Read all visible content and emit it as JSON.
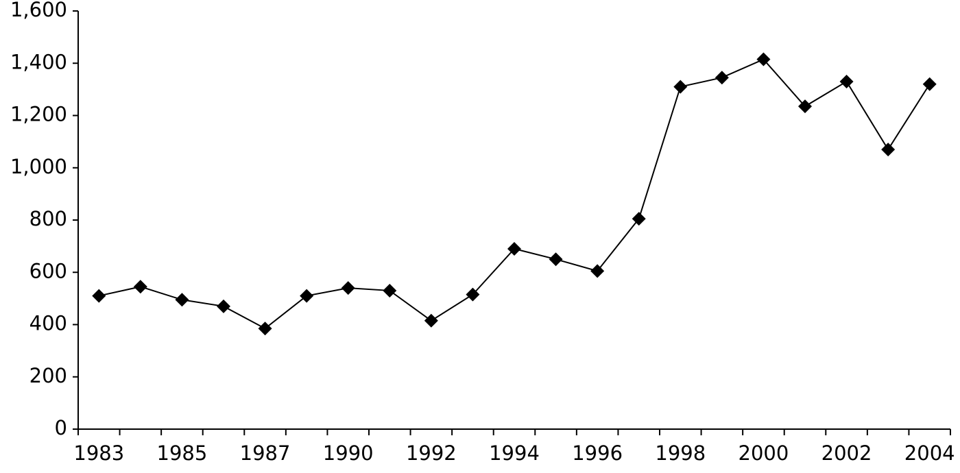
{
  "chart_data": {
    "type": "line",
    "categories": [
      "1983",
      null,
      "1985",
      null,
      "1987",
      null,
      "1990",
      null,
      "1992",
      null,
      "1994",
      null,
      "1996",
      null,
      "1998",
      null,
      "2000",
      null,
      "2002",
      null,
      "2004"
    ],
    "values": [
      510,
      545,
      495,
      470,
      385,
      510,
      540,
      530,
      415,
      515,
      690,
      650,
      605,
      805,
      1310,
      1345,
      1415,
      1235,
      1330,
      1070,
      1320
    ],
    "color": "#000000",
    "marker": "diamond",
    "ylim": [
      0,
      1600
    ],
    "yticks": [
      0,
      200,
      400,
      600,
      800,
      {
        "value": 1000,
        "label": "1,000"
      },
      {
        "value": 1200,
        "label": "1,200"
      },
      {
        "value": 1400,
        "label": "1,400"
      },
      {
        "value": 1600,
        "label": "1,600"
      }
    ],
    "grid": false
  }
}
